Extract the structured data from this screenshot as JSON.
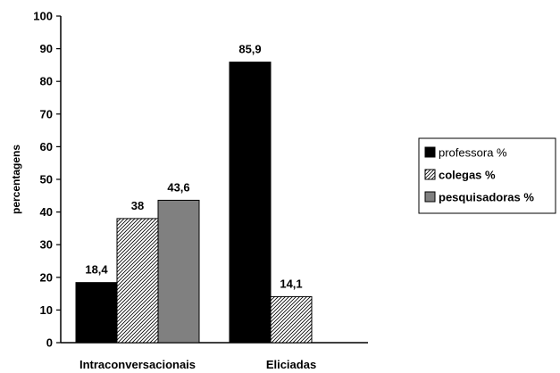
{
  "chart_data": {
    "type": "bar",
    "categories": [
      "Intraconversacionais",
      "Eliciadas"
    ],
    "series": [
      {
        "name": "professora %",
        "values": [
          18.4,
          85.9
        ],
        "labels": [
          "18,4",
          "85,9"
        ],
        "color": "#000000",
        "pattern": "solid"
      },
      {
        "name": "colegas %",
        "values": [
          38,
          14.1
        ],
        "labels": [
          "38",
          "14,1"
        ],
        "color": "#000000",
        "pattern": "hatch"
      },
      {
        "name": "pesquisadoras %",
        "values": [
          43.6,
          null
        ],
        "labels": [
          "43,6",
          null
        ],
        "color": "#808080",
        "pattern": "solid"
      }
    ],
    "ylabel": "percentagens",
    "xlabel": "",
    "ylim": [
      0,
      100
    ],
    "yticks": [
      0,
      10,
      20,
      30,
      40,
      50,
      60,
      70,
      80,
      90,
      100
    ],
    "grid": false,
    "legend_position": "right"
  }
}
